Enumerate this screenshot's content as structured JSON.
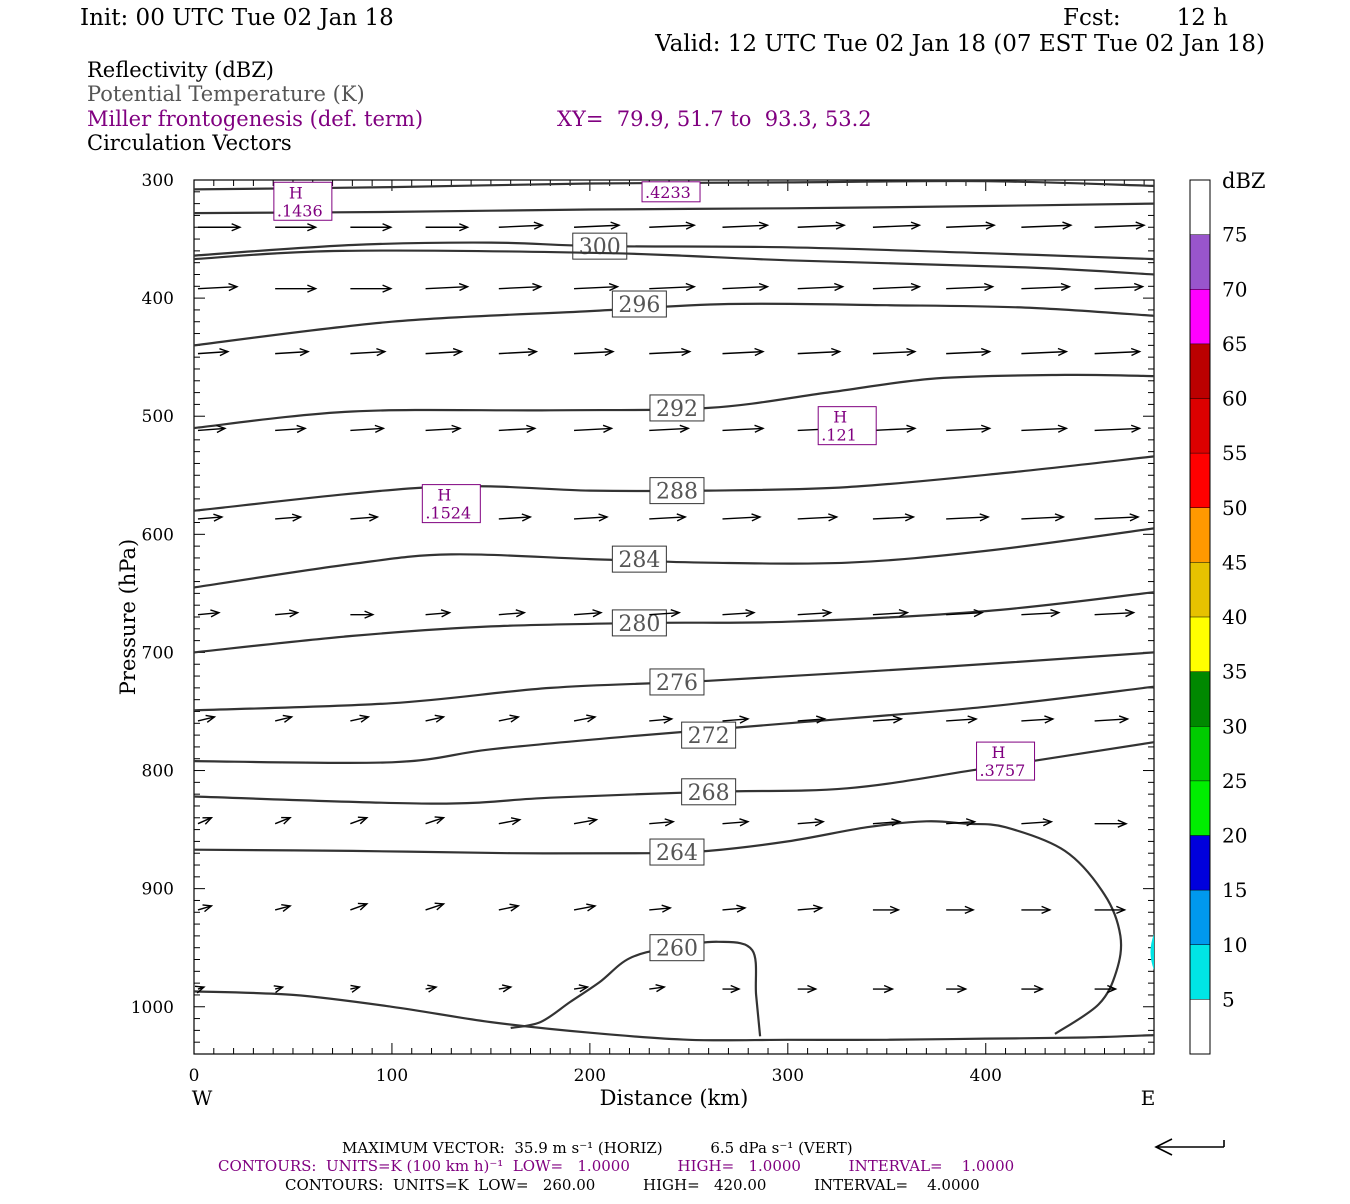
{
  "header": {
    "init": "Init: 00 UTC Tue 02 Jan 18",
    "fcst_label": "Fcst:",
    "fcst_value": "12 h",
    "valid": "Valid: 12 UTC Tue 02 Jan 18 (07 EST Tue 02 Jan 18)"
  },
  "fields": {
    "reflectivity": "Reflectivity (dBZ)",
    "theta": "Potential Temperature (K)",
    "frontogenesis": "Miller frontogenesis (def. term)",
    "xy": "XY=  79.9, 51.7 to  93.3, 53.2",
    "vectors": "Circulation Vectors"
  },
  "colors": {
    "purple": "#800080",
    "gray": "#555555",
    "contour": "#333333"
  },
  "chart_data": {
    "type": "cross-section",
    "xlabel": "Distance (km)",
    "ylabel": "Pressure (hPa)",
    "x_range": [
      0,
      485
    ],
    "y_range": [
      300,
      1040
    ],
    "x_ticks": [
      0,
      100,
      200,
      300,
      400
    ],
    "x_ticks_minor": [
      10,
      20,
      30,
      40,
      50,
      60,
      70,
      80,
      90,
      110,
      120,
      130,
      140,
      150,
      160,
      170,
      180,
      190,
      210,
      220,
      230,
      240,
      250,
      260,
      270,
      280,
      290,
      310,
      320,
      330,
      340,
      350,
      360,
      370,
      380,
      390,
      410,
      420,
      430,
      440,
      450,
      460,
      470,
      480
    ],
    "y_ticks": [
      300,
      400,
      500,
      600,
      700,
      800,
      900,
      1000
    ],
    "y_ticks_minor": [
      310,
      320,
      330,
      340,
      350,
      360,
      370,
      380,
      390,
      410,
      420,
      430,
      440,
      450,
      460,
      470,
      480,
      490,
      510,
      520,
      530,
      540,
      550,
      560,
      570,
      580,
      590,
      610,
      620,
      630,
      640,
      650,
      660,
      670,
      680,
      690,
      710,
      720,
      730,
      740,
      750,
      760,
      770,
      780,
      790,
      810,
      820,
      830,
      840,
      850,
      860,
      870,
      880,
      890,
      910,
      920,
      930,
      940,
      950,
      960,
      970,
      980,
      990,
      1010,
      1020,
      1030
    ],
    "left_end_label": "W",
    "right_end_label": "E",
    "theta_contours": [
      {
        "label": "",
        "points": [
          [
            0,
            308
          ],
          [
            100,
            306
          ],
          [
            200,
            303
          ],
          [
            300,
            302
          ],
          [
            400,
            301
          ],
          [
            485,
            305
          ]
        ]
      },
      {
        "label": "",
        "points": [
          [
            0,
            328
          ],
          [
            100,
            327
          ],
          [
            200,
            325
          ],
          [
            300,
            324
          ],
          [
            400,
            322
          ],
          [
            485,
            320
          ]
        ]
      },
      {
        "label": "300",
        "points": [
          [
            0,
            364
          ],
          [
            80,
            355
          ],
          [
            150,
            353
          ],
          [
            205,
            356
          ],
          [
            300,
            357
          ],
          [
            400,
            362
          ],
          [
            485,
            367
          ]
        ]
      },
      {
        "label": "",
        "points": [
          [
            0,
            367
          ],
          [
            75,
            360
          ],
          [
            210,
            362
          ],
          [
            300,
            368
          ],
          [
            420,
            374
          ],
          [
            485,
            380
          ]
        ]
      },
      {
        "label": "296",
        "points": [
          [
            0,
            440
          ],
          [
            100,
            420
          ],
          [
            200,
            411
          ],
          [
            270,
            405
          ],
          [
            350,
            406
          ],
          [
            420,
            408
          ],
          [
            485,
            415
          ]
        ]
      },
      {
        "label": "292",
        "points": [
          [
            0,
            510
          ],
          [
            80,
            496
          ],
          [
            180,
            495
          ],
          [
            260,
            493
          ],
          [
            320,
            480
          ],
          [
            375,
            468
          ],
          [
            440,
            465
          ],
          [
            485,
            466
          ]
        ]
      },
      {
        "label": "288",
        "points": [
          [
            0,
            580
          ],
          [
            120,
            560
          ],
          [
            200,
            563
          ],
          [
            260,
            563
          ],
          [
            330,
            560
          ],
          [
            410,
            548
          ],
          [
            485,
            534
          ]
        ]
      },
      {
        "label": "284",
        "points": [
          [
            0,
            645
          ],
          [
            80,
            625
          ],
          [
            130,
            617
          ],
          [
            200,
            621
          ],
          [
            260,
            624
          ],
          [
            330,
            624
          ],
          [
            400,
            614
          ],
          [
            485,
            595
          ]
        ]
      },
      {
        "label": "280",
        "points": [
          [
            0,
            700
          ],
          [
            80,
            686
          ],
          [
            150,
            678
          ],
          [
            230,
            675
          ],
          [
            300,
            674
          ],
          [
            400,
            665
          ],
          [
            485,
            649
          ]
        ]
      },
      {
        "label": "276",
        "points": [
          [
            0,
            749
          ],
          [
            100,
            743
          ],
          [
            180,
            730
          ],
          [
            260,
            724
          ],
          [
            380,
            712
          ],
          [
            485,
            700
          ]
        ]
      },
      {
        "label": "272",
        "points": [
          [
            0,
            792
          ],
          [
            100,
            793
          ],
          [
            150,
            782
          ],
          [
            220,
            771
          ],
          [
            300,
            760
          ],
          [
            400,
            746
          ],
          [
            485,
            729
          ]
        ]
      },
      {
        "label": "268",
        "points": [
          [
            0,
            822
          ],
          [
            120,
            828
          ],
          [
            180,
            823
          ],
          [
            260,
            818
          ],
          [
            330,
            815
          ],
          [
            400,
            798
          ],
          [
            485,
            776
          ]
        ]
      },
      {
        "label": "264",
        "points": [
          [
            0,
            867
          ],
          [
            80,
            868
          ],
          [
            160,
            870
          ],
          [
            230,
            870
          ],
          [
            260,
            868
          ],
          [
            300,
            860
          ],
          [
            340,
            848
          ],
          [
            370,
            843
          ],
          [
            390,
            845
          ],
          [
            410,
            848
          ],
          [
            440,
            868
          ],
          [
            460,
            905
          ],
          [
            468,
            940
          ],
          [
            466,
            970
          ],
          [
            457,
            998
          ],
          [
            435,
            1023
          ]
        ]
      },
      {
        "label": "260",
        "points": [
          [
            160,
            1018
          ],
          [
            175,
            1013
          ],
          [
            190,
            996
          ],
          [
            205,
            979
          ],
          [
            220,
            959
          ],
          [
            240,
            950
          ],
          [
            265,
            945
          ],
          [
            282,
            952
          ],
          [
            284,
            990
          ],
          [
            286,
            1025
          ]
        ]
      },
      {
        "label": "",
        "points": [
          [
            0,
            987
          ],
          [
            50,
            990
          ],
          [
            100,
            1000
          ],
          [
            150,
            1013
          ],
          [
            200,
            1022
          ],
          [
            250,
            1028
          ],
          [
            300,
            1028
          ],
          [
            350,
            1028
          ],
          [
            400,
            1027
          ],
          [
            450,
            1026
          ],
          [
            485,
            1024
          ]
        ]
      }
    ],
    "frontogenesis_highs": [
      {
        "label": "H",
        "value": ".1436",
        "x": 55,
        "p": 318
      },
      {
        "label": "",
        "value": ".4233",
        "x": 241,
        "p": 310
      },
      {
        "label": "H",
        "value": ".121",
        "x": 330,
        "p": 508
      },
      {
        "label": "H",
        "value": ".1524",
        "x": 130,
        "p": 574
      },
      {
        "label": "H",
        "value": ".3757",
        "x": 410,
        "p": 792
      }
    ],
    "vector_rows": [
      {
        "p": 340,
        "x": [
          2,
          41,
          79,
          117,
          154,
          192,
          230,
          267,
          305,
          343,
          380,
          418,
          455
        ],
        "u": [
          28,
          27,
          27,
          28,
          29,
          30,
          30,
          30,
          31,
          31,
          32,
          33,
          33
        ],
        "w": [
          0,
          0,
          0,
          0,
          -1,
          -1,
          -1,
          -1,
          -1,
          -1,
          -1,
          -1,
          -1
        ]
      },
      {
        "p": 392,
        "x": [
          2,
          41,
          79,
          117,
          154,
          192,
          230,
          267,
          305,
          343,
          380,
          418,
          455
        ],
        "u": [
          26,
          27,
          27,
          28,
          28,
          29,
          30,
          30,
          30,
          31,
          31,
          32,
          32
        ],
        "w": [
          -1,
          0,
          0,
          -1,
          -1,
          -1,
          -1,
          -1,
          -1,
          -1,
          -1,
          -1,
          -1
        ]
      },
      {
        "p": 447,
        "x": [
          2,
          41,
          79,
          117,
          154,
          192,
          230,
          267,
          305,
          343,
          380,
          418,
          455
        ],
        "u": [
          20,
          22,
          23,
          24,
          25,
          26,
          27,
          27,
          28,
          28,
          29,
          30,
          30
        ],
        "w": [
          -1,
          -1,
          -1,
          -1,
          -1,
          -1,
          -1,
          -1,
          -1,
          -1,
          -1,
          -1,
          -1
        ]
      },
      {
        "p": 512,
        "x": [
          2,
          41,
          79,
          117,
          154,
          192,
          230,
          267,
          305,
          343,
          380,
          418,
          455
        ],
        "u": [
          18,
          20,
          22,
          23,
          24,
          25,
          26,
          27,
          28,
          28,
          29,
          30,
          30
        ],
        "w": [
          -1,
          -1,
          -1,
          -1,
          -1,
          -1,
          -1,
          -1,
          -1,
          -1,
          -1,
          -1,
          -1
        ]
      },
      {
        "p": 587,
        "x": [
          2,
          41,
          79,
          117,
          154,
          192,
          230,
          267,
          305,
          343,
          380,
          418,
          455
        ],
        "u": [
          16,
          17,
          18,
          19,
          21,
          22,
          24,
          25,
          26,
          27,
          28,
          28,
          29
        ],
        "w": [
          -1,
          -1,
          -1,
          -1,
          -1,
          -1,
          -1,
          -1,
          -1,
          -1,
          -1,
          -1,
          -1
        ]
      },
      {
        "p": 668,
        "x": [
          2,
          41,
          79,
          117,
          154,
          192,
          230,
          267,
          305,
          343,
          380,
          418,
          455
        ],
        "u": [
          14,
          15,
          15,
          16,
          17,
          18,
          20,
          21,
          22,
          23,
          24,
          25,
          26
        ],
        "w": [
          -1,
          -1,
          0,
          -1,
          -1,
          -1,
          -1,
          -1,
          -1,
          -1,
          -1,
          -1,
          -1
        ]
      },
      {
        "p": 758,
        "x": [
          2,
          41,
          79,
          117,
          154,
          192,
          230,
          267,
          305,
          343,
          380,
          418,
          455
        ],
        "u": [
          11,
          11,
          12,
          12,
          13,
          14,
          15,
          17,
          18,
          19,
          20,
          21,
          22
        ],
        "w": [
          -2,
          -2,
          -2,
          -2,
          -2,
          -2,
          -1,
          -1,
          -1,
          -1,
          -1,
          -1,
          -1
        ]
      },
      {
        "p": 845,
        "x": [
          2,
          41,
          79,
          117,
          154,
          192,
          230,
          267,
          305,
          343,
          380,
          418,
          455
        ],
        "u": [
          9,
          10,
          11,
          12,
          14,
          15,
          16,
          17,
          17,
          18,
          19,
          20,
          21
        ],
        "w": [
          -3,
          -3,
          -3,
          -3,
          -2,
          -2,
          -1,
          -1,
          -1,
          -1,
          -1,
          -1,
          0
        ]
      },
      {
        "p": 918,
        "x": [
          2,
          41,
          79,
          117,
          154,
          192,
          230,
          267,
          305,
          343,
          380,
          418,
          455
        ],
        "u": [
          9,
          10,
          11,
          12,
          13,
          14,
          14,
          15,
          16,
          17,
          18,
          19,
          20
        ],
        "w": [
          -2,
          -2,
          -3,
          -3,
          -2,
          -2,
          -1,
          -1,
          -1,
          0,
          0,
          0,
          0
        ]
      },
      {
        "p": 985,
        "x": [
          2,
          41,
          79,
          117,
          154,
          192,
          230,
          267,
          305,
          343,
          380,
          418,
          455
        ],
        "u": [
          4,
          5,
          6,
          7,
          8,
          9,
          10,
          11,
          12,
          13,
          13,
          14,
          14
        ],
        "w": [
          -1,
          -1,
          -1,
          -1,
          -1,
          -1,
          -1,
          0,
          0,
          0,
          0,
          0,
          0
        ]
      }
    ],
    "colorbar": {
      "unit": "dBZ",
      "labels": [
        "5",
        "10",
        "15",
        "20",
        "25",
        "30",
        "35",
        "40",
        "45",
        "50",
        "55",
        "60",
        "65",
        "70",
        "75"
      ],
      "colors": [
        "#ffffff",
        "#00e5e5",
        "#0099ee",
        "#0000dd",
        "#00ee00",
        "#00cc00",
        "#008800",
        "#ffff00",
        "#e6c200",
        "#ff9900",
        "#ff0000",
        "#dd0000",
        "#bb0000",
        "#ff00ff",
        "#9955cc",
        "#ffffff"
      ]
    },
    "footer": {
      "vector_line": "MAXIMUM VECTOR:  35.9 m s⁻¹ (HORIZ)          6.5 dPa s⁻¹ (VERT)",
      "contours_purple": "CONTOURS:  UNITS=K (100 km h)⁻¹  LOW=   1.0000          HIGH=   1.0000          INTERVAL=    1.0000",
      "contours_black": "CONTOURS:  UNITS=K  LOW=   260.00          HIGH=   420.00          INTERVAL=    4.0000"
    }
  }
}
